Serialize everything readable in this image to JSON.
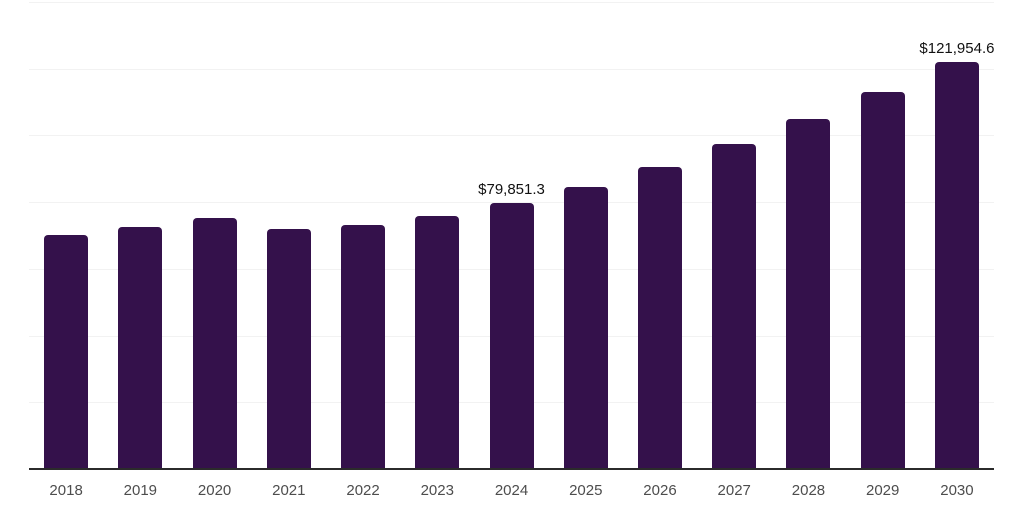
{
  "chart": {
    "background_color": "#ffffff",
    "bar_color": "#34114B",
    "grid_color": "#f2f2f2",
    "axis_color": "#2b2b2b",
    "x_label_color": "#4d4d4d",
    "data_label_color": "#111111"
  },
  "chart_data": {
    "type": "bar",
    "title": "",
    "xlabel": "",
    "ylabel": "",
    "categories": [
      "2018",
      "2019",
      "2020",
      "2021",
      "2022",
      "2023",
      "2024",
      "2025",
      "2026",
      "2027",
      "2028",
      "2029",
      "2030"
    ],
    "values": [
      70150,
      72700,
      75300,
      72100,
      73100,
      75800,
      79851.3,
      84600,
      90600,
      97500,
      105000,
      113000,
      121954.6
    ],
    "data_labels": [
      {
        "category": "2024",
        "text": "$79,851.3"
      },
      {
        "category": "2030",
        "text": "$121,954.6"
      }
    ],
    "ylim": [
      0,
      140000
    ],
    "gridline_interval": 20000,
    "grid": true,
    "legend_position": "none",
    "y_axis_tick_labels_visible": false
  }
}
